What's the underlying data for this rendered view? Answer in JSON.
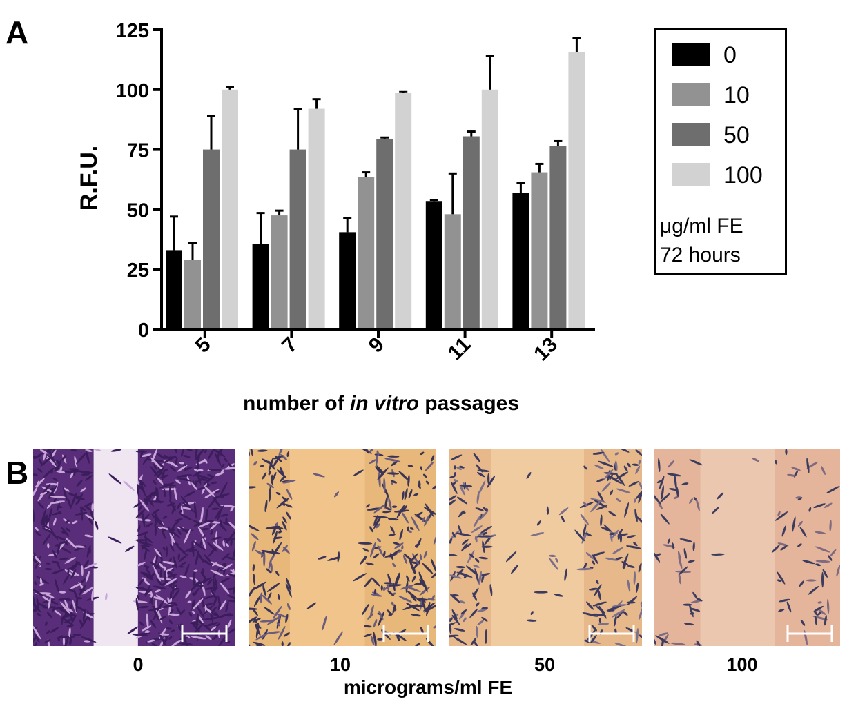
{
  "panels": {
    "a_letter": "A",
    "b_letter": "B"
  },
  "chart_data": {
    "type": "bar",
    "categories": [
      "5",
      "7",
      "9",
      "11",
      "13"
    ],
    "ylabel": "R.F.U.",
    "xlabel_parts": [
      "number of ",
      "in vitro",
      " passages"
    ],
    "ylim": [
      0,
      125
    ],
    "yticks": [
      0,
      25,
      50,
      75,
      100,
      125
    ],
    "series": [
      {
        "name": "0",
        "color": "#000000",
        "values": [
          33,
          35.5,
          40.5,
          53.5,
          57
        ],
        "errors": [
          14,
          13,
          6,
          0.5,
          4
        ]
      },
      {
        "name": "10",
        "color": "#929292",
        "values": [
          29,
          47.5,
          63.5,
          48,
          65.5
        ],
        "errors": [
          7,
          2,
          2,
          17,
          3.5
        ]
      },
      {
        "name": "50",
        "color": "#6e6e6e",
        "values": [
          75,
          75,
          79.5,
          80.5,
          76.5
        ],
        "errors": [
          14,
          17,
          0.5,
          2,
          2
        ]
      },
      {
        "name": "100",
        "color": "#d2d2d2",
        "values": [
          100,
          92,
          98.5,
          100,
          115.5
        ],
        "errors": [
          1,
          4,
          0.5,
          14,
          6
        ]
      }
    ],
    "legend_position": "right",
    "legend_note": [
      "μg/ml FE",
      "72 hours"
    ]
  },
  "micrographs": {
    "labels": [
      "0",
      "10",
      "50",
      "100"
    ],
    "axis_label": "micrograms/ml FE"
  }
}
